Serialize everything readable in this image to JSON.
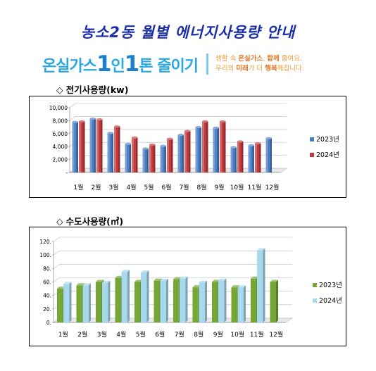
{
  "page": {
    "title": "농소2동 월별 에너지사용량 안내",
    "banner": {
      "slogan_part1": "온실가스",
      "slogan_num1": "1",
      "slogan_part2": "인",
      "slogan_num2": "1",
      "slogan_part3": "톤 줄이기",
      "line1_pre": "생활 속 ",
      "line1_hl1": "온실가스",
      "line1_mid": ", ",
      "line1_hl2": "함께",
      "line1_post": " 줄여요.",
      "line2_pre": "우리의 ",
      "line2_hl1": "미래",
      "line2_mid": "가 더 ",
      "line2_hl2": "행복",
      "line2_post": "해집니다."
    },
    "section1_marker": "◇",
    "section1_title": "전기사용량(kw)",
    "section2_marker": "◇",
    "section2_title": "수도사용량(㎥)"
  },
  "colors": {
    "title": "#1c2fa8",
    "elec_2023": "#4a7dc4",
    "elec_2024": "#c1393b",
    "water_2023": "#74a638",
    "water_2024": "#a8d8ec"
  },
  "chart_data": [
    {
      "type": "bar",
      "title": "전기사용량(kw)",
      "categories": [
        "1월",
        "2월",
        "3월",
        "4월",
        "5월",
        "6월",
        "7월",
        "8월",
        "9월",
        "10월",
        "11월",
        "12월"
      ],
      "series": [
        {
          "name": "2023년",
          "values": [
            7800,
            8300,
            6100,
            4400,
            3700,
            4100,
            5800,
            7000,
            6900,
            3900,
            4200,
            5300
          ]
        },
        {
          "name": "2024년",
          "values": [
            7900,
            8200,
            7100,
            5400,
            4300,
            5200,
            6400,
            7900,
            7900,
            4800,
            4500,
            null
          ]
        }
      ],
      "y_ticks": [
        "10,000",
        "8,000",
        "6,000",
        "4,000",
        "2,000",
        "-"
      ],
      "ylim": [
        0,
        10000
      ],
      "grid": true,
      "legend": "right",
      "style": "3d-cylinder"
    },
    {
      "type": "bar",
      "title": "수도사용량(㎥)",
      "categories": [
        "1월",
        "2월",
        "3월",
        "4월",
        "5월",
        "6월",
        "7월",
        "8월",
        "9월",
        "10월",
        "11월",
        "12월"
      ],
      "series": [
        {
          "name": "2023년",
          "values": [
            50,
            55,
            60,
            66,
            60,
            62,
            64,
            52,
            60,
            52,
            65,
            60
          ]
        },
        {
          "name": "2024년",
          "values": [
            57,
            55,
            59,
            75,
            74,
            62,
            65,
            59,
            62,
            52,
            107,
            null
          ]
        }
      ],
      "y_ticks": [
        "120.",
        "100.",
        "80.",
        "60.",
        "40.",
        "20.",
        "0."
      ],
      "ylim": [
        0,
        120
      ],
      "grid": true,
      "legend": "right",
      "style": "3d-box"
    }
  ]
}
